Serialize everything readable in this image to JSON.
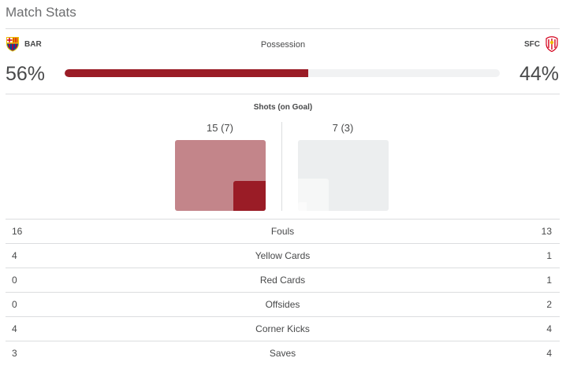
{
  "header": {
    "title": "Match Stats"
  },
  "teams": {
    "home": {
      "abbr": "BAR",
      "crest_icon": "barcelona-crest-icon",
      "colors": [
        "#004d98",
        "#a50044",
        "#edbb00"
      ]
    },
    "away": {
      "abbr": "SFC",
      "crest_icon": "sevilla-crest-icon",
      "colors": [
        "#d4021d",
        "#ffffff"
      ]
    }
  },
  "possession": {
    "label": "Possession",
    "home_pct": "56%",
    "away_pct": "44%",
    "home_value": 56,
    "bar_color": "#9a1c26"
  },
  "shots": {
    "label": "Shots (on Goal)",
    "home_text": "15 (7)",
    "away_text": "7 (3)",
    "home_total": 15,
    "home_on_goal": 7,
    "away_total": 7,
    "away_on_goal": 3
  },
  "stats": [
    {
      "name": "Fouls",
      "home": "16",
      "away": "13"
    },
    {
      "name": "Yellow Cards",
      "home": "4",
      "away": "1"
    },
    {
      "name": "Red Cards",
      "home": "0",
      "away": "1"
    },
    {
      "name": "Offsides",
      "home": "0",
      "away": "2"
    },
    {
      "name": "Corner Kicks",
      "home": "4",
      "away": "4"
    },
    {
      "name": "Saves",
      "home": "3",
      "away": "4"
    }
  ],
  "colors": {
    "home_accent": "#9a1c26",
    "home_shots_light": "#c3858a",
    "away_shots": "#eceeef",
    "divider": "#dcdddf"
  }
}
